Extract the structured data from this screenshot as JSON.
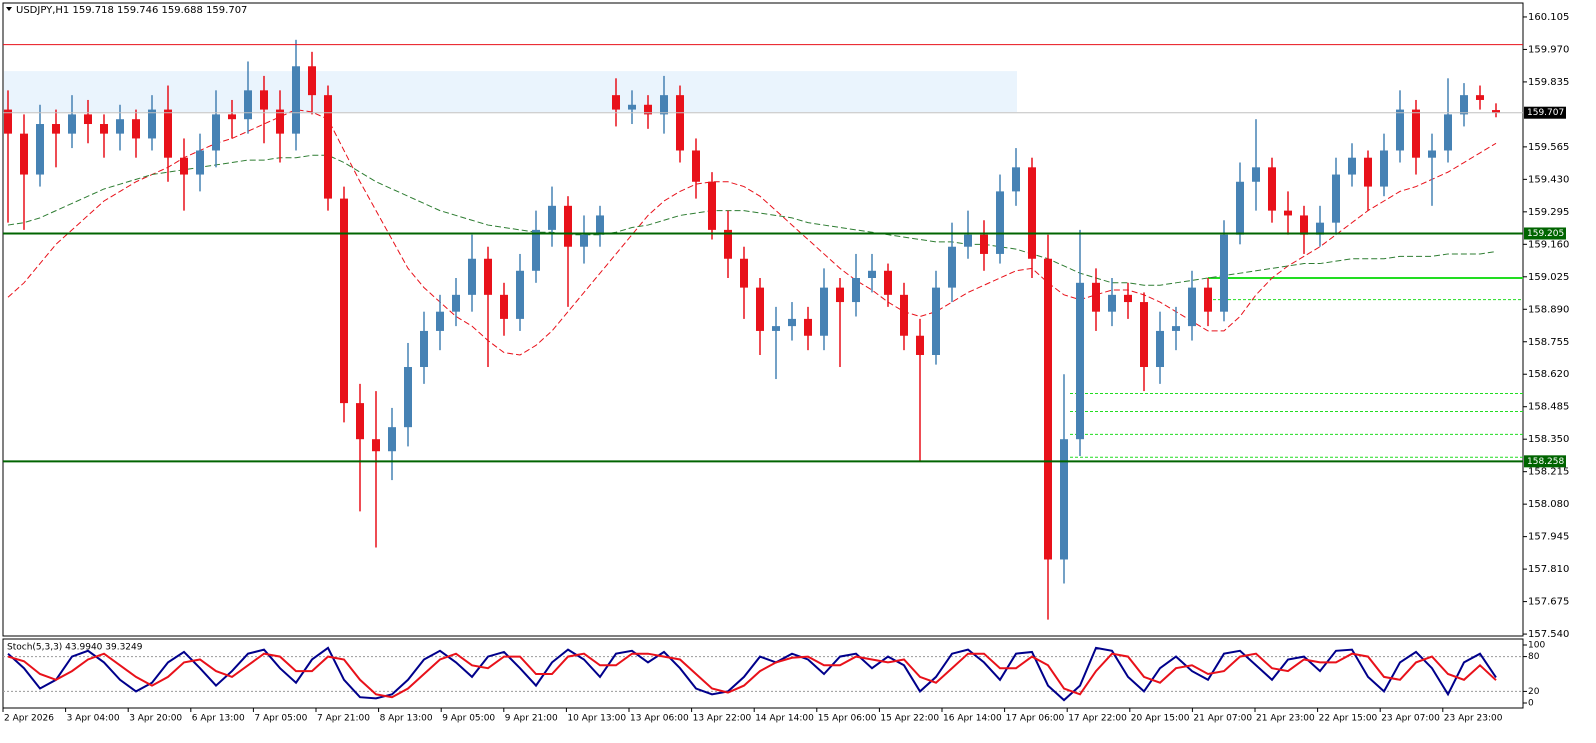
{
  "chart_data": {
    "type": "candlestick",
    "title": "USDJPY,H1  159.718 159.746 159.688 159.707",
    "up_color": "#4682b4",
    "down_color": "#e8111a",
    "ylim": [
      157.532,
      160.163
    ],
    "yticks": [
      160.105,
      {
        "value": 159.97,
        "label": "159.970"
      },
      159.835,
      159.565,
      {
        "value": 159.43,
        "label": "159.430"
      },
      159.295,
      {
        "value": 159.16,
        "label": "159.160"
      },
      159.025,
      {
        "value": 158.89,
        "label": "158.890"
      },
      158.755,
      {
        "value": 158.62,
        "label": "158.620"
      },
      158.485,
      {
        "value": 158.35,
        "label": "158.350"
      },
      158.215,
      {
        "value": 158.08,
        "label": "158.080"
      },
      157.945,
      {
        "value": 157.81,
        "label": "157.810"
      },
      157.675,
      {
        "value": 157.54,
        "label": "157.540"
      }
    ],
    "x_labels": [
      "2 Apr 2026",
      "3 Apr 04:00",
      "3 Apr 20:00",
      "6 Apr 13:00",
      "7 Apr 05:00",
      "7 Apr 21:00",
      "8 Apr 13:00",
      "9 Apr 05:00",
      "9 Apr 21:00",
      "10 Apr 13:00",
      "13 Apr 06:00",
      "13 Apr 22:00",
      "14 Apr 14:00",
      "15 Apr 06:00",
      "15 Apr 22:00",
      "16 Apr 14:00",
      "17 Apr 06:00",
      "17 Apr 22:00",
      "20 Apr 15:00",
      "21 Apr 07:00",
      "21 Apr 23:00",
      "22 Apr 15:00",
      "23 Apr 07:00",
      "23 Apr 23:00"
    ],
    "open": [
      159.72,
      159.62,
      159.45,
      159.66,
      159.62,
      159.7,
      159.66,
      159.62,
      159.68,
      159.6,
      159.72,
      159.52,
      159.45,
      159.55,
      159.7,
      159.68,
      159.8,
      159.72,
      159.62,
      159.9,
      159.78,
      159.35,
      158.5,
      158.35,
      158.3,
      158.4,
      158.65,
      158.8,
      158.88,
      158.95,
      159.1,
      158.95,
      158.85,
      159.05,
      159.22,
      159.32,
      159.15,
      159.2,
      159.78,
      159.72,
      159.74,
      159.7,
      159.78,
      159.55,
      159.42,
      159.22,
      159.1,
      158.98,
      158.8,
      158.82,
      158.85,
      158.78,
      158.98,
      158.92,
      159.02,
      159.05,
      158.95,
      158.78,
      158.7,
      158.98,
      159.15,
      159.2,
      159.12,
      159.38,
      159.48,
      159.1,
      157.85,
      158.35,
      159.0,
      158.88,
      158.95,
      158.92,
      158.65,
      158.8,
      158.82,
      158.98,
      158.88,
      159.2,
      159.42,
      159.48,
      159.3,
      159.28,
      159.2,
      159.25,
      159.45,
      159.52,
      159.4,
      159.55,
      159.72,
      159.52,
      159.55,
      159.7,
      159.78,
      159.718
    ],
    "high": [
      159.8,
      159.7,
      159.74,
      159.72,
      159.78,
      159.76,
      159.7,
      159.74,
      159.72,
      159.78,
      159.82,
      159.6,
      159.62,
      159.8,
      159.76,
      159.92,
      159.86,
      159.8,
      160.01,
      159.96,
      159.82,
      159.4,
      158.58,
      158.55,
      158.48,
      158.75,
      158.88,
      158.95,
      159.02,
      159.2,
      159.15,
      159.0,
      159.12,
      159.3,
      159.4,
      159.36,
      159.28,
      159.32,
      159.85,
      159.8,
      159.78,
      159.86,
      159.82,
      159.6,
      159.46,
      159.3,
      159.15,
      159.02,
      158.9,
      158.92,
      158.9,
      159.06,
      159.02,
      159.12,
      159.12,
      159.08,
      159.0,
      158.85,
      159.05,
      159.25,
      159.3,
      159.26,
      159.45,
      159.56,
      159.52,
      159.2,
      158.62,
      159.22,
      159.06,
      159.02,
      159.0,
      158.96,
      158.88,
      158.9,
      159.05,
      159.02,
      159.26,
      159.5,
      159.68,
      159.52,
      159.38,
      159.32,
      159.32,
      159.52,
      159.58,
      159.55,
      159.62,
      159.8,
      159.76,
      159.62,
      159.85,
      159.83,
      159.82,
      159.746
    ],
    "low": [
      159.25,
      159.22,
      159.4,
      159.48,
      159.56,
      159.58,
      159.52,
      159.55,
      159.52,
      159.55,
      159.42,
      159.3,
      159.38,
      159.48,
      159.6,
      159.62,
      159.58,
      159.5,
      159.55,
      159.7,
      159.3,
      158.42,
      158.05,
      157.9,
      158.18,
      158.32,
      158.58,
      158.72,
      158.82,
      158.88,
      158.65,
      158.78,
      158.8,
      159.0,
      159.15,
      158.9,
      159.08,
      159.15,
      159.65,
      159.66,
      159.64,
      159.62,
      159.5,
      159.35,
      159.18,
      159.02,
      158.85,
      158.7,
      158.6,
      158.76,
      158.72,
      158.72,
      158.65,
      158.86,
      158.96,
      158.9,
      158.72,
      158.26,
      158.66,
      158.92,
      159.1,
      159.05,
      159.08,
      159.32,
      159.02,
      157.6,
      157.75,
      158.28,
      158.8,
      158.82,
      158.85,
      158.55,
      158.58,
      158.72,
      158.76,
      158.82,
      158.84,
      159.16,
      159.3,
      159.25,
      159.2,
      159.12,
      159.15,
      159.2,
      159.4,
      159.3,
      159.36,
      159.5,
      159.45,
      159.32,
      159.5,
      159.65,
      159.72,
      159.688
    ],
    "close": [
      159.62,
      159.45,
      159.66,
      159.62,
      159.7,
      159.66,
      159.62,
      159.68,
      159.6,
      159.72,
      159.52,
      159.45,
      159.55,
      159.7,
      159.68,
      159.8,
      159.72,
      159.62,
      159.9,
      159.78,
      159.35,
      158.5,
      158.35,
      158.3,
      158.4,
      158.65,
      158.8,
      158.88,
      158.95,
      159.1,
      158.95,
      158.85,
      159.05,
      159.22,
      159.32,
      159.15,
      159.2,
      159.28,
      159.72,
      159.74,
      159.7,
      159.78,
      159.55,
      159.42,
      159.22,
      159.1,
      158.98,
      158.8,
      158.82,
      158.85,
      158.78,
      158.98,
      158.92,
      159.02,
      159.05,
      158.95,
      158.78,
      158.7,
      158.98,
      159.15,
      159.2,
      159.12,
      159.38,
      159.48,
      159.1,
      157.85,
      158.35,
      159.0,
      158.88,
      158.95,
      158.92,
      158.65,
      158.8,
      158.82,
      158.98,
      158.88,
      159.2,
      159.42,
      159.48,
      159.3,
      159.28,
      159.2,
      159.25,
      159.45,
      159.52,
      159.4,
      159.55,
      159.72,
      159.52,
      159.55,
      159.7,
      159.78,
      159.76,
      159.707
    ],
    "overlays": [
      {
        "color": "#e8111a",
        "values": [
          158.94,
          159.0,
          159.08,
          159.16,
          159.22,
          159.28,
          159.34,
          159.38,
          159.42,
          159.45,
          159.48,
          159.52,
          159.55,
          159.58,
          159.6,
          159.63,
          159.66,
          159.69,
          159.72,
          159.71,
          159.68,
          159.55,
          159.42,
          159.3,
          159.18,
          159.06,
          158.98,
          158.92,
          158.86,
          158.82,
          158.76,
          158.71,
          158.7,
          158.74,
          158.8,
          158.88,
          158.96,
          159.04,
          159.12,
          159.2,
          159.28,
          159.34,
          159.38,
          159.41,
          159.42,
          159.42,
          159.4,
          159.36,
          159.3,
          159.24,
          159.18,
          159.12,
          159.06,
          159.01,
          158.97,
          158.92,
          158.88,
          158.86,
          158.88,
          158.92,
          158.96,
          158.99,
          159.02,
          159.05,
          159.06,
          159.0,
          158.95,
          158.93,
          158.95,
          158.97,
          158.97,
          158.95,
          158.92,
          158.88,
          158.84,
          158.8,
          158.8,
          158.86,
          158.95,
          159.02,
          159.07,
          159.11,
          159.15,
          159.2,
          159.25,
          159.3,
          159.34,
          159.38,
          159.4,
          159.43,
          159.46,
          159.5,
          159.54,
          159.58
        ]
      },
      {
        "color": "#2e7d32",
        "values": [
          159.24,
          159.25,
          159.27,
          159.3,
          159.33,
          159.36,
          159.39,
          159.41,
          159.43,
          159.45,
          159.46,
          159.47,
          159.48,
          159.49,
          159.5,
          159.51,
          159.51,
          159.52,
          159.52,
          159.53,
          159.53,
          159.5,
          159.46,
          159.42,
          159.39,
          159.36,
          159.33,
          159.3,
          159.28,
          159.26,
          159.24,
          159.23,
          159.22,
          159.21,
          159.21,
          159.2,
          159.2,
          159.2,
          159.21,
          159.23,
          159.24,
          159.26,
          159.28,
          159.29,
          159.3,
          159.3,
          159.3,
          159.29,
          159.28,
          159.27,
          159.25,
          159.24,
          159.23,
          159.22,
          159.21,
          159.2,
          159.19,
          159.18,
          159.17,
          159.17,
          159.16,
          159.16,
          159.15,
          159.14,
          159.12,
          159.1,
          159.07,
          159.04,
          159.02,
          159.0,
          159.0,
          158.99,
          158.99,
          159.0,
          159.01,
          159.02,
          159.03,
          159.04,
          159.05,
          159.06,
          159.07,
          159.08,
          159.08,
          159.09,
          159.1,
          159.1,
          159.1,
          159.11,
          159.11,
          159.11,
          159.12,
          159.12,
          159.12,
          159.13
        ]
      }
    ],
    "hlines": [
      {
        "value": 159.99,
        "color": "#e8111a"
      },
      {
        "value": 159.205,
        "color": "#006400"
      },
      {
        "value": 158.258,
        "color": "#006400"
      }
    ],
    "zone": {
      "from": 159.71,
      "to": 159.88,
      "color": "#eaf4fd"
    },
    "levels": [
      {
        "color": "#22dd22",
        "values": [
          159.02,
          158.93
        ]
      },
      {
        "color": "#22dd22",
        "values": [
          158.54,
          158.465,
          158.37,
          158.275
        ]
      }
    ],
    "indicator": {
      "title": "Stoch(5,3,3) 43.9940 39.3249",
      "ylim": [
        -8.6,
        108.6
      ],
      "yticks": [
        100,
        80,
        20,
        0
      ],
      "levels": [
        80,
        20
      ],
      "series": [
        {
          "color": "#00008b",
          "values": [
            85,
            60,
            25,
            40,
            80,
            90,
            70,
            40,
            20,
            35,
            70,
            88,
            60,
            30,
            55,
            85,
            92,
            60,
            35,
            75,
            95,
            40,
            10,
            8,
            15,
            40,
            75,
            90,
            70,
            45,
            80,
            88,
            60,
            30,
            70,
            92,
            75,
            45,
            85,
            90,
            70,
            88,
            60,
            25,
            15,
            20,
            45,
            80,
            70,
            85,
            75,
            50,
            80,
            85,
            60,
            80,
            65,
            20,
            45,
            85,
            92,
            70,
            40,
            85,
            88,
            30,
            5,
            30,
            95,
            90,
            45,
            20,
            60,
            80,
            55,
            40,
            85,
            90,
            65,
            40,
            75,
            80,
            55,
            90,
            92,
            45,
            20,
            70,
            88,
            60,
            15,
            70,
            85,
            43.994
          ]
        },
        {
          "color": "#e8111a",
          "values": [
            80,
            72,
            50,
            40,
            55,
            75,
            85,
            65,
            45,
            30,
            45,
            70,
            75,
            55,
            45,
            65,
            85,
            80,
            55,
            55,
            80,
            75,
            40,
            15,
            10,
            25,
            50,
            75,
            85,
            65,
            60,
            80,
            80,
            50,
            50,
            80,
            85,
            65,
            65,
            85,
            85,
            80,
            75,
            50,
            25,
            18,
            30,
            55,
            70,
            78,
            80,
            65,
            65,
            80,
            75,
            70,
            75,
            45,
            35,
            60,
            85,
            85,
            60,
            60,
            80,
            65,
            25,
            15,
            55,
            85,
            80,
            45,
            35,
            60,
            65,
            50,
            55,
            80,
            85,
            60,
            55,
            75,
            70,
            70,
            85,
            80,
            45,
            40,
            70,
            80,
            50,
            40,
            65,
            39.3249
          ]
        }
      ]
    }
  }
}
